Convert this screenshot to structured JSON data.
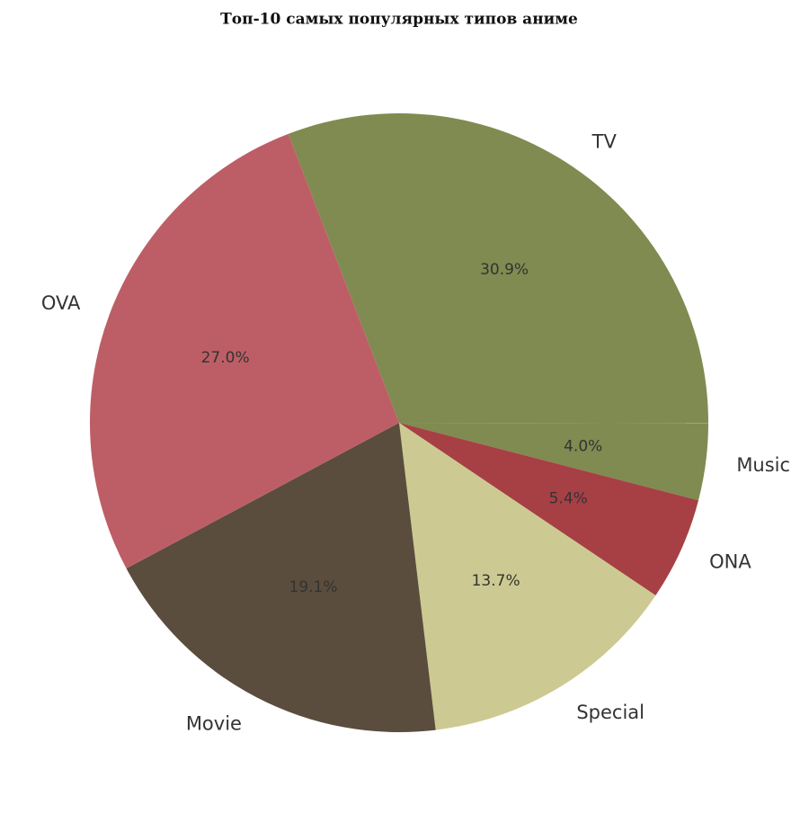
{
  "chart_data": {
    "type": "pie",
    "title": "Топ-10 самых популярных типов аниме",
    "categories": [
      "TV",
      "Music",
      "ONA",
      "Special",
      "Movie",
      "OVA"
    ],
    "values": [
      30.9,
      4.0,
      5.4,
      13.7,
      19.1,
      27.0
    ],
    "value_labels": [
      "30.9%",
      "4.0%",
      "5.4%",
      "13.7%",
      "19.1%",
      "27.0%"
    ],
    "colors": [
      "#7f8b50",
      "#7f8b50",
      "#a64044",
      "#ccca92",
      "#5a4d3d",
      "#bd5e66"
    ]
  }
}
